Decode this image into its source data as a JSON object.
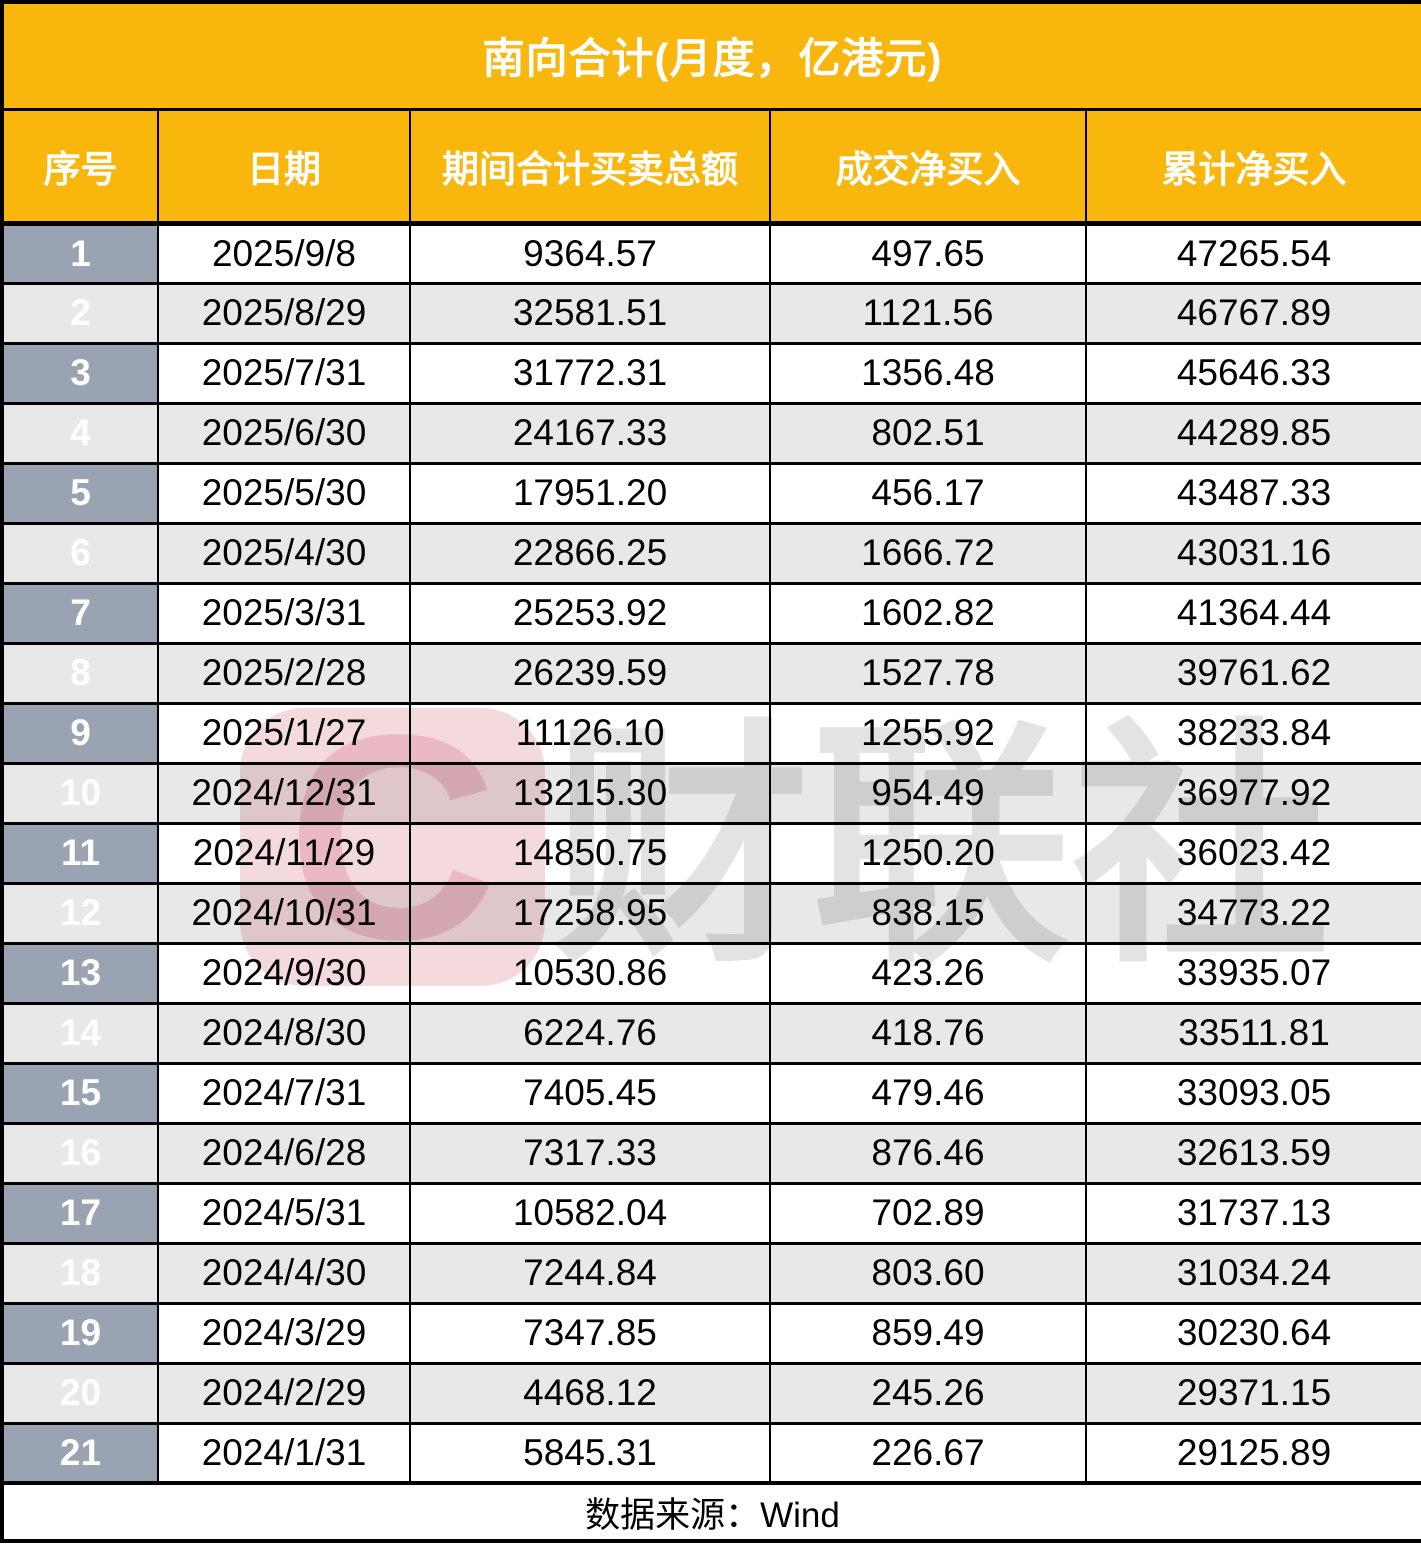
{
  "chart_data": {
    "type": "table",
    "title": "南向合计(月度，亿港元)",
    "columns": [
      "序号",
      "日期",
      "期间合计买卖总额",
      "成交净买入",
      "累计净买入"
    ],
    "rows": [
      [
        "1",
        "2025/9/8",
        "9364.57",
        "497.65",
        "47265.54"
      ],
      [
        "2",
        "2025/8/29",
        "32581.51",
        "1121.56",
        "46767.89"
      ],
      [
        "3",
        "2025/7/31",
        "31772.31",
        "1356.48",
        "45646.33"
      ],
      [
        "4",
        "2025/6/30",
        "24167.33",
        "802.51",
        "44289.85"
      ],
      [
        "5",
        "2025/5/30",
        "17951.20",
        "456.17",
        "43487.33"
      ],
      [
        "6",
        "2025/4/30",
        "22866.25",
        "1666.72",
        "43031.16"
      ],
      [
        "7",
        "2025/3/31",
        "25253.92",
        "1602.82",
        "41364.44"
      ],
      [
        "8",
        "2025/2/28",
        "26239.59",
        "1527.78",
        "39761.62"
      ],
      [
        "9",
        "2025/1/27",
        "11126.10",
        "1255.92",
        "38233.84"
      ],
      [
        "10",
        "2024/12/31",
        "13215.30",
        "954.49",
        "36977.92"
      ],
      [
        "11",
        "2024/11/29",
        "14850.75",
        "1250.20",
        "36023.42"
      ],
      [
        "12",
        "2024/10/31",
        "17258.95",
        "838.15",
        "34773.22"
      ],
      [
        "13",
        "2024/9/30",
        "10530.86",
        "423.26",
        "33935.07"
      ],
      [
        "14",
        "2024/8/30",
        "6224.76",
        "418.76",
        "33511.81"
      ],
      [
        "15",
        "2024/7/31",
        "7405.45",
        "479.46",
        "33093.05"
      ],
      [
        "16",
        "2024/6/28",
        "7317.33",
        "876.46",
        "32613.59"
      ],
      [
        "17",
        "2024/5/31",
        "10582.04",
        "702.89",
        "31737.13"
      ],
      [
        "18",
        "2024/4/30",
        "7244.84",
        "803.60",
        "31034.24"
      ],
      [
        "19",
        "2024/3/29",
        "7347.85",
        "859.49",
        "30230.64"
      ],
      [
        "20",
        "2024/2/29",
        "4468.12",
        "245.26",
        "29371.15"
      ],
      [
        "21",
        "2024/1/31",
        "5845.31",
        "226.67",
        "29125.89"
      ]
    ],
    "source_note": "数据来源：Wind"
  },
  "watermark": {
    "logo_letter": "C",
    "brand_text": "财联社"
  },
  "colors": {
    "title_bar": "#F9B70E",
    "header_bar": "#F9B70E",
    "seq_column": "#9AA3B1",
    "row_odd": "#FFFFFF",
    "row_even": "#E8E8E8",
    "border": "#000000",
    "watermark_pink_bg": "#F4DADD",
    "watermark_pink_c": "#EBB9C3",
    "watermark_gray_text": "#E3E3E3"
  }
}
